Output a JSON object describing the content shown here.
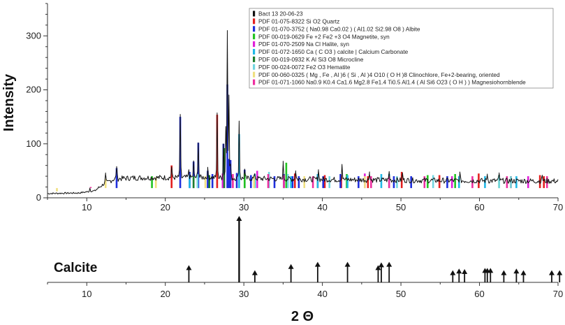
{
  "chart_data": [
    {
      "type": "line",
      "ylabel": "Intensity",
      "xlim": [
        5,
        70
      ],
      "ylim": [
        0,
        360
      ],
      "x_ticks": [
        10,
        20,
        30,
        40,
        50,
        60,
        70
      ],
      "y_ticks": [
        0,
        100,
        200,
        300
      ],
      "background": {
        "x_start": 5,
        "x_step": 0.1,
        "envelope": [
          [
            5,
            8
          ],
          [
            9,
            9
          ],
          [
            11,
            13
          ],
          [
            12.3,
            27
          ],
          [
            13.5,
            35
          ],
          [
            16,
            37
          ],
          [
            25,
            38
          ],
          [
            30,
            36
          ],
          [
            40,
            34
          ],
          [
            55,
            32
          ],
          [
            70,
            31
          ]
        ]
      },
      "peaks": [
        {
          "x": 10.4,
          "y": 18
        },
        {
          "x": 12.4,
          "y": 44
        },
        {
          "x": 13.8,
          "y": 58
        },
        {
          "x": 20.8,
          "y": 57
        },
        {
          "x": 21.9,
          "y": 150
        },
        {
          "x": 23.0,
          "y": 52
        },
        {
          "x": 23.6,
          "y": 66
        },
        {
          "x": 24.2,
          "y": 102
        },
        {
          "x": 25.4,
          "y": 52
        },
        {
          "x": 26.6,
          "y": 154
        },
        {
          "x": 27.4,
          "y": 100
        },
        {
          "x": 27.7,
          "y": 132
        },
        {
          "x": 27.9,
          "y": 310
        },
        {
          "x": 28.1,
          "y": 188
        },
        {
          "x": 28.3,
          "y": 62
        },
        {
          "x": 29.4,
          "y": 142
        },
        {
          "x": 30.1,
          "y": 52
        },
        {
          "x": 31.4,
          "y": 45
        },
        {
          "x": 35.0,
          "y": 64
        },
        {
          "x": 36.6,
          "y": 50
        },
        {
          "x": 39.5,
          "y": 52
        },
        {
          "x": 42.5,
          "y": 62
        },
        {
          "x": 46.0,
          "y": 48
        },
        {
          "x": 48.5,
          "y": 48
        },
        {
          "x": 50.2,
          "y": 45
        },
        {
          "x": 57.5,
          "y": 45
        },
        {
          "x": 61.0,
          "y": 44
        },
        {
          "x": 62.5,
          "y": 44
        },
        {
          "x": 68.0,
          "y": 42
        }
      ],
      "stick_series": [
        {
          "color": "#e32020",
          "positions": [
            {
              "x": 20.8,
              "y": 60
            },
            {
              "x": 26.6,
              "y": 154
            },
            {
              "x": 36.5,
              "y": 45
            },
            {
              "x": 39.4,
              "y": 44
            },
            {
              "x": 40.3,
              "y": 42
            },
            {
              "x": 42.4,
              "y": 42
            },
            {
              "x": 45.8,
              "y": 40
            },
            {
              "x": 50.1,
              "y": 48
            },
            {
              "x": 54.9,
              "y": 42
            },
            {
              "x": 59.9,
              "y": 45
            },
            {
              "x": 64.0,
              "y": 40
            },
            {
              "x": 67.7,
              "y": 42
            },
            {
              "x": 68.2,
              "y": 40
            }
          ]
        },
        {
          "color": "#1f2fdc",
          "positions": [
            {
              "x": 13.8,
              "y": 55
            },
            {
              "x": 21.9,
              "y": 150
            },
            {
              "x": 23.1,
              "y": 48
            },
            {
              "x": 23.6,
              "y": 67
            },
            {
              "x": 24.2,
              "y": 102
            },
            {
              "x": 25.4,
              "y": 50
            },
            {
              "x": 26.0,
              "y": 44
            },
            {
              "x": 27.4,
              "y": 100
            },
            {
              "x": 27.9,
              "y": 210
            },
            {
              "x": 28.1,
              "y": 72
            },
            {
              "x": 28.3,
              "y": 70
            },
            {
              "x": 29.1,
              "y": 46
            },
            {
              "x": 30.1,
              "y": 52
            },
            {
              "x": 30.9,
              "y": 42
            },
            {
              "x": 33.9,
              "y": 40
            },
            {
              "x": 35.1,
              "y": 44
            },
            {
              "x": 36.2,
              "y": 40
            },
            {
              "x": 37.0,
              "y": 40
            },
            {
              "x": 40.1,
              "y": 40
            },
            {
              "x": 42.3,
              "y": 44
            },
            {
              "x": 44.6,
              "y": 40
            },
            {
              "x": 49.1,
              "y": 40
            },
            {
              "x": 51.3,
              "y": 40
            },
            {
              "x": 55.9,
              "y": 40
            }
          ]
        },
        {
          "color": "#22c322",
          "positions": [
            {
              "x": 18.3,
              "y": 40
            },
            {
              "x": 30.1,
              "y": 45
            },
            {
              "x": 35.4,
              "y": 65
            },
            {
              "x": 43.1,
              "y": 44
            },
            {
              "x": 53.4,
              "y": 42
            },
            {
              "x": 56.9,
              "y": 44
            },
            {
              "x": 62.5,
              "y": 42
            }
          ]
        },
        {
          "color": "#e020d8",
          "positions": [
            {
              "x": 27.3,
              "y": 45
            },
            {
              "x": 31.7,
              "y": 50
            },
            {
              "x": 45.4,
              "y": 45
            },
            {
              "x": 56.5,
              "y": 40
            },
            {
              "x": 66.2,
              "y": 40
            }
          ]
        },
        {
          "color": "#20b8e6",
          "positions": [
            {
              "x": 23.1,
              "y": 42
            },
            {
              "x": 29.4,
              "y": 118
            },
            {
              "x": 31.4,
              "y": 44
            },
            {
              "x": 36.0,
              "y": 40
            },
            {
              "x": 39.4,
              "y": 44
            },
            {
              "x": 43.2,
              "y": 42
            },
            {
              "x": 47.5,
              "y": 44
            },
            {
              "x": 48.5,
              "y": 44
            },
            {
              "x": 57.4,
              "y": 40
            },
            {
              "x": 60.7,
              "y": 40
            },
            {
              "x": 64.7,
              "y": 40
            }
          ]
        },
        {
          "color": "#1e7d2c",
          "positions": [
            {
              "x": 27.5,
              "y": 92
            },
            {
              "x": 25.6,
              "y": 42
            },
            {
              "x": 23.6,
              "y": 40
            }
          ]
        },
        {
          "color": "#72d6e0",
          "positions": [
            {
              "x": 24.1,
              "y": 44
            },
            {
              "x": 33.2,
              "y": 48
            },
            {
              "x": 35.6,
              "y": 44
            },
            {
              "x": 40.9,
              "y": 40
            },
            {
              "x": 49.5,
              "y": 40
            },
            {
              "x": 54.1,
              "y": 42
            },
            {
              "x": 62.5,
              "y": 42
            },
            {
              "x": 64.0,
              "y": 40
            }
          ]
        },
        {
          "color": "#f0e080",
          "positions": [
            {
              "x": 6.2,
              "y": 12
            },
            {
              "x": 12.4,
              "y": 35
            },
            {
              "x": 18.8,
              "y": 38
            },
            {
              "x": 25.1,
              "y": 40
            },
            {
              "x": 31.3,
              "y": 40
            },
            {
              "x": 37.7,
              "y": 40
            },
            {
              "x": 45.4,
              "y": 40
            }
          ]
        },
        {
          "color": "#ee2fa0",
          "positions": [
            {
              "x": 10.5,
              "y": 20
            },
            {
              "x": 28.6,
              "y": 44
            },
            {
              "x": 33.1,
              "y": 44
            },
            {
              "x": 35.1,
              "y": 42
            },
            {
              "x": 38.8,
              "y": 40
            },
            {
              "x": 46.2,
              "y": 40
            },
            {
              "x": 48.5,
              "y": 40
            },
            {
              "x": 53.0,
              "y": 40
            },
            {
              "x": 59.1,
              "y": 40
            },
            {
              "x": 63.5,
              "y": 40
            },
            {
              "x": 68.6,
              "y": 40
            }
          ]
        }
      ],
      "legend": {
        "placement": "top-right",
        "entries": [
          {
            "label": "Bact 13 20-06-23",
            "color": "#111111"
          },
          {
            "label": "PDF 01-075-8322 Si O2 Quartz",
            "color": "#e32020"
          },
          {
            "label": "PDF 01-070-3752 ( Na0.98 Ca0.02 ) ( Al1.02 Si2.98 O8 ) Albite",
            "color": "#1f2fdc"
          },
          {
            "label": "PDF 00-019-0629 Fe +2 Fe2 +3 O4 Magnetite, syn",
            "color": "#22c322"
          },
          {
            "label": "PDF 01-070-2509 Na Cl Halite, syn",
            "color": "#e020d8"
          },
          {
            "label": "PDF 01-072-1650 Ca ( C O3 ) calcite | Calcium Carbonate",
            "color": "#20b8e6"
          },
          {
            "label": "PDF 00-019-0932 K Al Si3 O8 Microcline",
            "color": "#1e7d2c"
          },
          {
            "label": "PDF 00-024-0072 Fe2 O3 Hematite",
            "color": "#72d6e0"
          },
          {
            "label": "PDF 00-060-0325 ( Mg , Fe , Al )6 ( Si , Al )4 O10 ( O H )8 Clinochlore, Fe+2-bearing, oriented",
            "color": "#f0e080"
          },
          {
            "label": "PDF 01-071-1060 Na0.9 K0.4 Ca1.6 Mg2.8 Fe1.4 Ti0.5 Al1.4 ( Al Si6 O23 ( O H ) ) Magnesiohornblende",
            "color": "#ee2fa0"
          }
        ]
      }
    },
    {
      "type": "stick",
      "label": "Calcite",
      "xlabel": "2 Θ",
      "xlim": [
        5,
        70
      ],
      "x_ticks": [
        10,
        20,
        30,
        40,
        50,
        60,
        70
      ],
      "reflections": [
        {
          "x": 23.0,
          "h": 0.12
        },
        {
          "x": 29.4,
          "h": 1.0
        },
        {
          "x": 31.4,
          "h": 0.03
        },
        {
          "x": 36.0,
          "h": 0.14
        },
        {
          "x": 39.4,
          "h": 0.18
        },
        {
          "x": 43.2,
          "h": 0.18
        },
        {
          "x": 47.1,
          "h": 0.12
        },
        {
          "x": 47.5,
          "h": 0.17
        },
        {
          "x": 48.5,
          "h": 0.18
        },
        {
          "x": 56.6,
          "h": 0.03
        },
        {
          "x": 57.4,
          "h": 0.06
        },
        {
          "x": 58.1,
          "h": 0.05
        },
        {
          "x": 60.7,
          "h": 0.07
        },
        {
          "x": 61.0,
          "h": 0.07
        },
        {
          "x": 61.4,
          "h": 0.07
        },
        {
          "x": 63.1,
          "h": 0.03
        },
        {
          "x": 64.7,
          "h": 0.06
        },
        {
          "x": 65.6,
          "h": 0.03
        },
        {
          "x": 69.2,
          "h": 0.03
        },
        {
          "x": 70.2,
          "h": 0.03
        }
      ]
    }
  ]
}
